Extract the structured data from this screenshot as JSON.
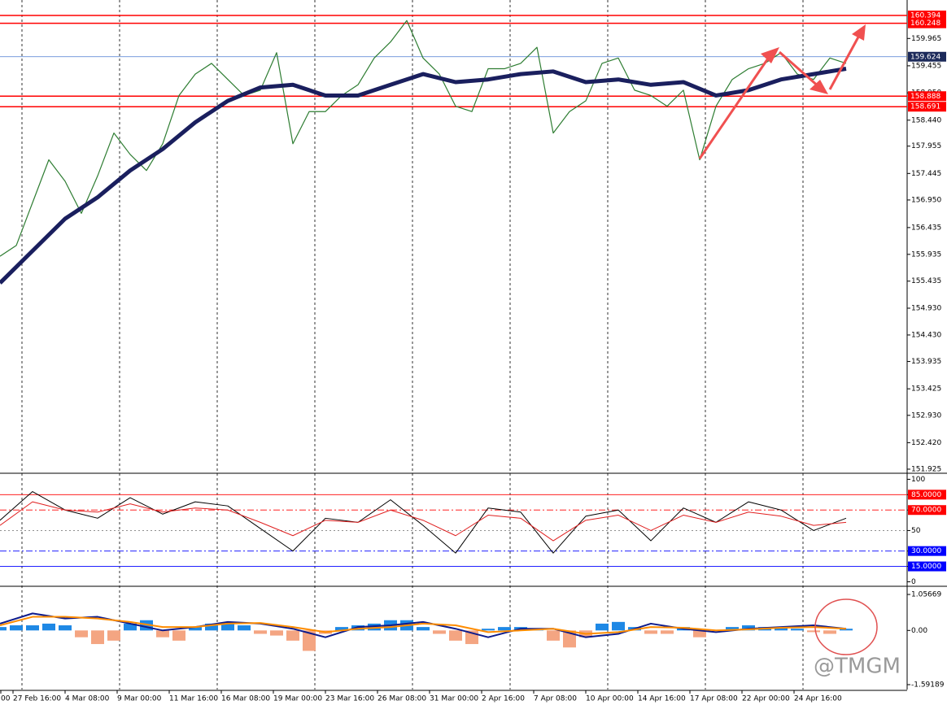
{
  "chart_data": [
    {
      "type": "line",
      "ylim": [
        151.864,
        160.683
      ],
      "yticks": [
        159.965,
        159.455,
        {
          "value": 158.95,
          "label": "158.950"
        },
        {
          "value": 158.44,
          "label": "158.440"
        },
        157.955,
        157.445,
        {
          "value": 156.95,
          "label": "156.950"
        },
        156.435,
        155.935,
        155.435,
        {
          "value": 154.93,
          "label": "154.930"
        },
        {
          "value": 154.43,
          "label": "154.430"
        },
        153.935,
        153.425,
        {
          "value": 152.93,
          "label": "152.930"
        },
        {
          "value": 152.42,
          "label": "152.420"
        },
        151.925
      ],
      "levels": [
        {
          "value": 160.394,
          "color": "#ff0000"
        },
        {
          "value": 160.248,
          "color": "#ff0000"
        },
        {
          "value": 159.624,
          "color": "#1c2a5a"
        },
        {
          "value": 158.888,
          "color": "#ff0000"
        },
        {
          "value": 158.691,
          "color": "#ff0000"
        }
      ],
      "series": [
        {
          "color": "#2e7d32",
          "width": 1.2,
          "values": [
            155.9,
            156.1,
            156.9,
            157.7,
            157.3,
            156.7,
            157.4,
            158.2,
            157.8,
            157.5,
            158.0,
            158.9,
            159.3,
            159.5,
            159.2,
            158.9,
            159.0,
            159.7,
            158.0,
            158.6,
            158.6,
            158.9,
            159.1,
            159.6,
            159.9,
            160.3,
            159.6,
            159.3,
            158.7,
            158.6,
            159.4,
            159.4,
            159.5,
            159.8,
            158.2,
            158.6,
            158.8,
            159.5,
            159.6,
            159.0,
            158.9,
            158.7,
            159.0,
            157.7,
            158.7,
            159.2,
            159.4,
            159.5,
            159.7,
            159.3,
            159.2,
            159.6,
            159.5
          ]
        },
        {
          "color": "#1a1f5e",
          "width": 5,
          "values": [
            155.4,
            156.0,
            156.6,
            157.0,
            157.5,
            157.9,
            158.4,
            158.8,
            159.05,
            159.1,
            158.9,
            158.9,
            159.1,
            159.3,
            159.15,
            159.2,
            159.3,
            159.35,
            159.15,
            159.2,
            159.1,
            159.15,
            158.9,
            159.0,
            159.2,
            159.3,
            159.4
          ]
        }
      ]
    },
    {
      "type": "line",
      "ylim": [
        -3.6,
        104.3
      ],
      "yticks": [
        100,
        {
          "value": 85,
          "label": "85.0000",
          "color": "#ff0000",
          "dash": "solid"
        },
        {
          "value": 70,
          "label": "70.0000",
          "color": "#ff0000",
          "dash": "dashdot"
        },
        {
          "value": 50,
          "label": "50",
          "color": "#808080",
          "dash": "dot"
        },
        {
          "value": 30,
          "label": "30.0000",
          "color": "#0000ff",
          "dash": "dashdot"
        },
        {
          "value": 15,
          "label": "15.0000",
          "color": "#0000ff",
          "dash": "solid"
        },
        0
      ],
      "series": [
        {
          "color": "#000000",
          "width": 1,
          "values": [
            60,
            88,
            70,
            62,
            82,
            66,
            78,
            74,
            52,
            30,
            62,
            58,
            80,
            55,
            28,
            72,
            68,
            28,
            64,
            70,
            40,
            72,
            58,
            78,
            70,
            50,
            62
          ]
        },
        {
          "color": "#e02020",
          "width": 1,
          "values": [
            55,
            78,
            70,
            68,
            76,
            68,
            72,
            70,
            58,
            45,
            60,
            58,
            70,
            60,
            45,
            65,
            62,
            40,
            60,
            65,
            50,
            65,
            58,
            68,
            64,
            55,
            58
          ]
        }
      ]
    },
    {
      "type": "bar",
      "ylim": [
        -1.736,
        1.249
      ],
      "yticks": [
        1.05669,
        {
          "value": 0,
          "label": "0.00"
        },
        -1.59189
      ],
      "pos_color": "#1e88e5",
      "neg_color": "#f4a582",
      "values": [
        0.1,
        0.15,
        0.15,
        0.2,
        0.15,
        -0.2,
        -0.4,
        -0.3,
        0.2,
        0.3,
        -0.2,
        -0.3,
        0.1,
        0.2,
        0.2,
        0.15,
        -0.1,
        -0.15,
        -0.3,
        -0.6,
        -0.1,
        0.1,
        0.15,
        0.2,
        0.3,
        0.3,
        0.1,
        -0.1,
        -0.3,
        -0.4,
        0.05,
        0.1,
        0.1,
        0.05,
        -0.3,
        -0.5,
        -0.2,
        0.2,
        0.25,
        0.1,
        -0.1,
        -0.1,
        0.1,
        -0.2,
        0.0,
        0.1,
        0.15,
        0.1,
        0.08,
        0.05,
        -0.05,
        -0.1,
        0.05
      ],
      "series": [
        {
          "color": "#0d1b8c",
          "width": 2,
          "values": [
            0.2,
            0.5,
            0.35,
            0.4,
            0.2,
            0.0,
            0.1,
            0.25,
            0.2,
            0.05,
            -0.2,
            0.1,
            0.15,
            0.25,
            0.05,
            -0.2,
            0.05,
            0.05,
            -0.2,
            -0.1,
            0.2,
            0.05,
            -0.05,
            0.05,
            0.1,
            0.15,
            0.05
          ]
        },
        {
          "color": "#ff8c00",
          "width": 2,
          "values": [
            0.15,
            0.4,
            0.4,
            0.35,
            0.25,
            0.1,
            0.1,
            0.2,
            0.22,
            0.1,
            -0.05,
            0.05,
            0.1,
            0.2,
            0.15,
            -0.05,
            0.0,
            0.05,
            -0.1,
            -0.05,
            0.1,
            0.08,
            0.0,
            0.03,
            0.08,
            0.1,
            0.05
          ]
        }
      ],
      "x_tick_labels": [
        "00",
        "27 Feb 16:00",
        "4 Mar 08:00",
        "9 Mar 00:00",
        "11 Mar 16:00",
        "16 Mar 08:00",
        "19 Mar 00:00",
        "23 Mar 16:00",
        "26 Mar 08:00",
        "31 Mar 00:00",
        "2 Apr 16:00",
        "7 Apr 08:00",
        "10 Apr 00:00",
        "14 Apr 16:00",
        "17 Apr 08:00",
        "22 Apr 00:00",
        "24 Apr 16:00"
      ],
      "watermark": "@TMGM"
    }
  ]
}
